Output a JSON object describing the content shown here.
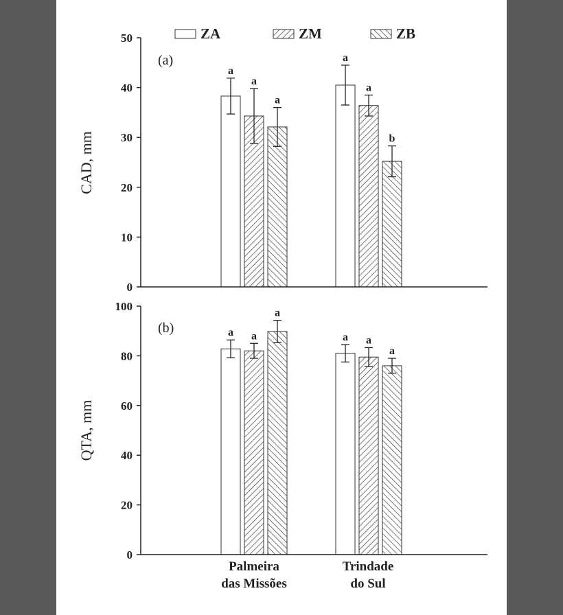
{
  "legend": [
    {
      "name": "ZA",
      "pattern": "none"
    },
    {
      "name": "ZM",
      "pattern": "hatch-right"
    },
    {
      "name": "ZB",
      "pattern": "hatch-left"
    }
  ],
  "categories": [
    {
      "line1": "Palmeira",
      "line2": "das Missões"
    },
    {
      "line1": "Trindade",
      "line2": "do Sul"
    }
  ],
  "colors": {
    "background": "#595959",
    "panel": "#ffffff",
    "ink": "#222222"
  },
  "chart_data": [
    {
      "type": "bar",
      "panel_label": "(a)",
      "ylabel": "CAD, mm",
      "ylim": [
        0,
        50
      ],
      "yticks": [
        0,
        10,
        20,
        30,
        40,
        50
      ],
      "categories": [
        "Palmeira das Missões",
        "Trindade do Sul"
      ],
      "series": [
        {
          "name": "ZA",
          "values": [
            38.3,
            40.5
          ],
          "errors": [
            3.6,
            4.0
          ],
          "letters": [
            "a",
            "a"
          ]
        },
        {
          "name": "ZM",
          "values": [
            34.3,
            36.4
          ],
          "errors": [
            5.5,
            2.1
          ],
          "letters": [
            "a",
            "a"
          ]
        },
        {
          "name": "ZB",
          "values": [
            32.1,
            25.2
          ],
          "errors": [
            3.9,
            3.1
          ],
          "letters": [
            "a",
            "b"
          ]
        }
      ]
    },
    {
      "type": "bar",
      "panel_label": "(b)",
      "ylabel": "QTA, mm",
      "ylim": [
        0,
        100
      ],
      "yticks": [
        0,
        20,
        40,
        60,
        80,
        100
      ],
      "categories": [
        "Palmeira das Missões",
        "Trindade do Sul"
      ],
      "series": [
        {
          "name": "ZA",
          "values": [
            82.8,
            81.0
          ],
          "errors": [
            3.6,
            3.5
          ],
          "letters": [
            "a",
            "a"
          ]
        },
        {
          "name": "ZM",
          "values": [
            82.0,
            79.5
          ],
          "errors": [
            3.0,
            3.8
          ],
          "letters": [
            "a",
            "a"
          ]
        },
        {
          "name": "ZB",
          "values": [
            89.8,
            76.0
          ],
          "errors": [
            4.5,
            3.0
          ],
          "letters": [
            "a",
            "a"
          ]
        }
      ]
    }
  ]
}
